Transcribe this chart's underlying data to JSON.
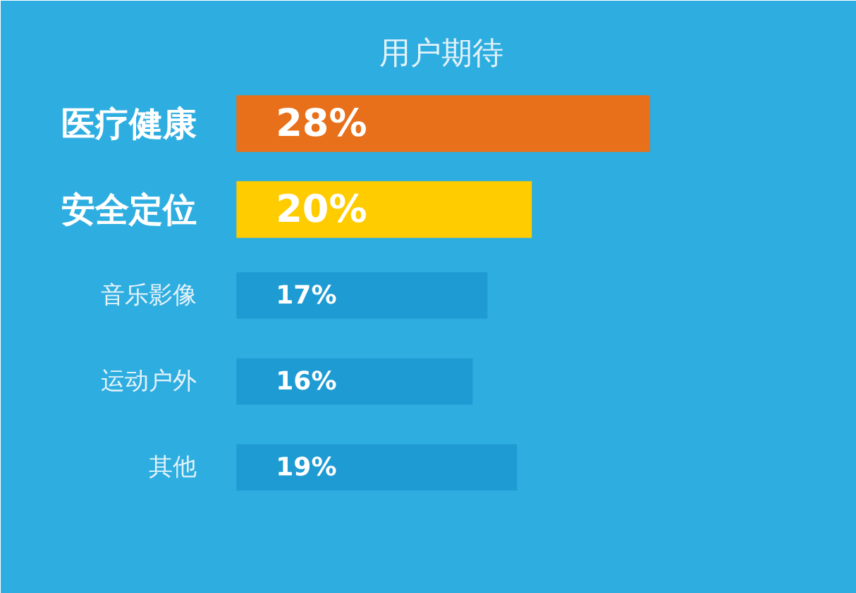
{
  "chart_data": {
    "type": "bar",
    "orientation": "horizontal",
    "title": "用户期待",
    "categories": [
      "医疗健康",
      "安全定位",
      "音乐影像",
      "运动户外",
      "其他"
    ],
    "values": [
      28,
      20,
      17,
      16,
      19
    ],
    "colors": [
      "#e8701a",
      "#ffcc00",
      "#1f9bd3",
      "#1f9bd3",
      "#1f9bd3"
    ],
    "value_labels": [
      "28%",
      "20%",
      "17%",
      "16%",
      "19%"
    ],
    "grid": false
  }
}
